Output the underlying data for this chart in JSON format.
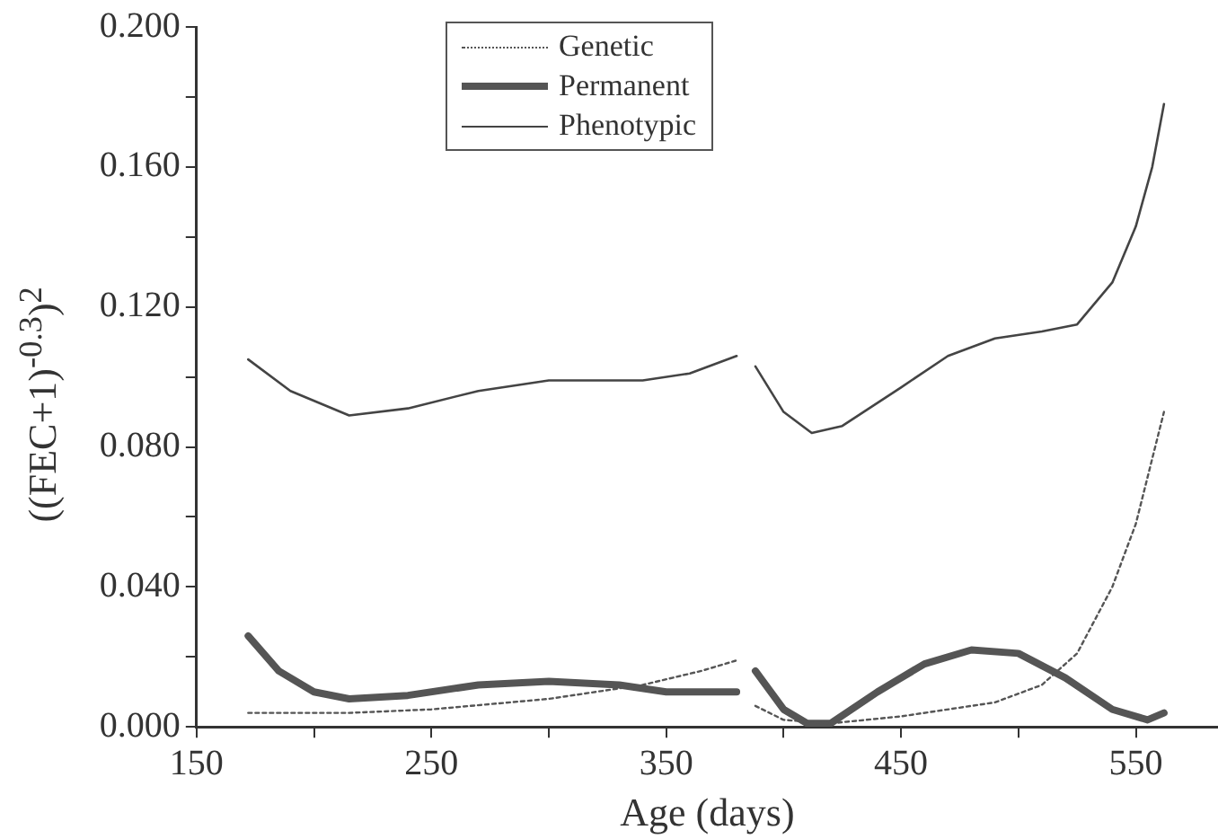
{
  "chart_data": {
    "type": "line",
    "xlabel": "Age (days)",
    "ylabel": "((FEC+1)$^{-0.3}$)$^{2}$",
    "xlim": [
      150,
      585
    ],
    "xticks": [
      150,
      {
        "value": 200,
        "label": null
      },
      250,
      {
        "value": 300,
        "label": null
      },
      350,
      {
        "value": 400,
        "label": null
      },
      450,
      {
        "value": 500,
        "label": null
      },
      550
    ],
    "ylim": [
      0,
      0.2
    ],
    "yticks": [
      {
        "value": 0,
        "label": "0.000"
      },
      {
        "value": 0.02,
        "label": null
      },
      {
        "value": 0.04,
        "label": "0.040"
      },
      {
        "value": 0.06,
        "label": null
      },
      {
        "value": 0.08,
        "label": "0.080"
      },
      {
        "value": 0.1,
        "label": null
      },
      {
        "value": 0.12,
        "label": "0.120"
      },
      {
        "value": 0.14,
        "label": null
      },
      {
        "value": 0.16,
        "label": "0.160"
      },
      {
        "value": 0.18,
        "label": null
      },
      {
        "value": 0.2,
        "label": "0.200"
      }
    ],
    "grid": false,
    "legend": "top",
    "marker": "none",
    "series": [
      {
        "name": "Genetic",
        "color": "#555555",
        "line_style": "dotted",
        "x": [
          172,
          215,
          250,
          300,
          340,
          365,
          380,
          384,
          388,
          400,
          420,
          450,
          490,
          510,
          525,
          540,
          550,
          562
        ],
        "values": [
          0.004,
          0.004,
          0.005,
          0.008,
          0.012,
          0.016,
          0.019,
          null,
          0.006,
          0.002,
          0.001,
          0.003,
          0.007,
          0.012,
          0.021,
          0.04,
          0.058,
          0.09
        ]
      },
      {
        "name": "Permanent",
        "color": "#555555",
        "line_style": "solid",
        "x": [
          172,
          185,
          200,
          215,
          240,
          270,
          300,
          330,
          350,
          380,
          384,
          388,
          400,
          410,
          420,
          440,
          460,
          480,
          500,
          520,
          540,
          555,
          562
        ],
        "values": [
          0.026,
          0.016,
          0.01,
          0.008,
          0.009,
          0.012,
          0.013,
          0.012,
          0.01,
          0.01,
          null,
          0.016,
          0.005,
          0.001,
          0.001,
          0.01,
          0.018,
          0.022,
          0.021,
          0.014,
          0.005,
          0.002,
          0.004
        ]
      },
      {
        "name": "Phenotypic",
        "color": "#444444",
        "line_style": "solid",
        "x": [
          172,
          190,
          215,
          240,
          270,
          300,
          340,
          360,
          380,
          384,
          388,
          400,
          412,
          425,
          450,
          470,
          490,
          510,
          525,
          540,
          550,
          557,
          562
        ],
        "values": [
          0.105,
          0.096,
          0.089,
          0.091,
          0.096,
          0.099,
          0.099,
          0.101,
          0.106,
          null,
          0.103,
          0.09,
          0.084,
          0.086,
          0.097,
          0.106,
          0.111,
          0.113,
          0.115,
          0.127,
          0.143,
          0.16,
          0.178
        ]
      }
    ]
  }
}
